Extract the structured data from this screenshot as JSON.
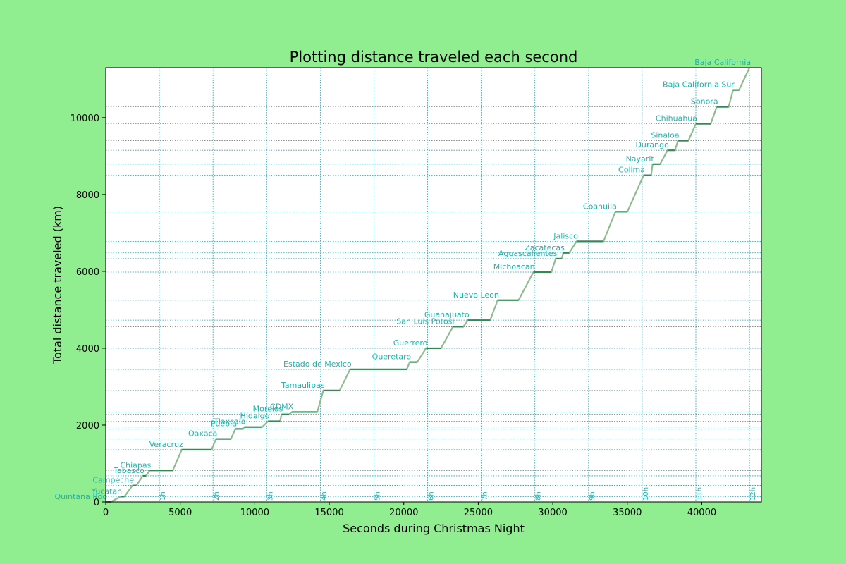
{
  "chart_data": {
    "type": "line",
    "title": "Plotting distance traveled each second",
    "xlabel": "Seconds during Christmas Night",
    "ylabel": "Total distance traveled (km)",
    "xlim": [
      0,
      44000
    ],
    "ylim": [
      0,
      11300
    ],
    "x_ticks": [
      0,
      5000,
      10000,
      15000,
      20000,
      25000,
      30000,
      35000,
      40000
    ],
    "y_ticks": [
      0,
      2000,
      4000,
      6000,
      8000,
      10000
    ],
    "hour_marks": [
      {
        "x": 3600,
        "label": "1h"
      },
      {
        "x": 7200,
        "label": "2h"
      },
      {
        "x": 10800,
        "label": "3h"
      },
      {
        "x": 14400,
        "label": "4h"
      },
      {
        "x": 18000,
        "label": "5h"
      },
      {
        "x": 21600,
        "label": "6h"
      },
      {
        "x": 25200,
        "label": "7h"
      },
      {
        "x": 28800,
        "label": "8h"
      },
      {
        "x": 32400,
        "label": "9h"
      },
      {
        "x": 36000,
        "label": "10h"
      },
      {
        "x": 39600,
        "label": "11h"
      },
      {
        "x": 43200,
        "label": "12h"
      }
    ],
    "grid": true,
    "colors": {
      "background": "#90ee90",
      "line": "#8fbc8f",
      "stop": "#2e8b57",
      "label": "#20b2aa",
      "grid": "#17a2b8"
    },
    "stops": [
      {
        "name": "Quintana Roo",
        "start": 0,
        "end": 330,
        "km": 0
      },
      {
        "name": "Yucatan",
        "start": 1000,
        "end": 1250,
        "km": 140
      },
      {
        "name": "Campeche",
        "start": 1800,
        "end": 2050,
        "km": 430
      },
      {
        "name": "Tabasco",
        "start": 2500,
        "end": 2700,
        "km": 680
      },
      {
        "name": "Chiapas",
        "start": 2950,
        "end": 4500,
        "km": 820
      },
      {
        "name": "Veracruz",
        "start": 5100,
        "end": 7100,
        "km": 1360
      },
      {
        "name": "Oaxaca",
        "start": 7400,
        "end": 8400,
        "km": 1640
      },
      {
        "name": "Puebla",
        "start": 8700,
        "end": 9200,
        "km": 1900
      },
      {
        "name": "Tlaxcala",
        "start": 9300,
        "end": 10500,
        "km": 1950
      },
      {
        "name": "Hidalgo",
        "start": 10900,
        "end": 11700,
        "km": 2100
      },
      {
        "name": "Morelos",
        "start": 11800,
        "end": 12300,
        "km": 2280
      },
      {
        "name": "CDMX",
        "start": 12500,
        "end": 14200,
        "km": 2340
      },
      {
        "name": "Tamaulipas",
        "start": 14600,
        "end": 15700,
        "km": 2900
      },
      {
        "name": "Estado de Mexico",
        "start": 16400,
        "end": 20200,
        "km": 3450
      },
      {
        "name": "Queretaro",
        "start": 20400,
        "end": 20900,
        "km": 3640
      },
      {
        "name": "Guerrero",
        "start": 21500,
        "end": 22500,
        "km": 4000
      },
      {
        "name": "San Luis Potosi",
        "start": 23300,
        "end": 24000,
        "km": 4560
      },
      {
        "name": "Guanajuato",
        "start": 24300,
        "end": 25800,
        "km": 4730
      },
      {
        "name": "Nuevo Leon",
        "start": 26300,
        "end": 27700,
        "km": 5250
      },
      {
        "name": "Michoacan",
        "start": 28700,
        "end": 29900,
        "km": 5980
      },
      {
        "name": "Aguascalientes",
        "start": 30200,
        "end": 30600,
        "km": 6330
      },
      {
        "name": "Zacatecas",
        "start": 30700,
        "end": 31100,
        "km": 6480
      },
      {
        "name": "Jalisco",
        "start": 31600,
        "end": 33400,
        "km": 6780
      },
      {
        "name": "Coahuila",
        "start": 34200,
        "end": 35000,
        "km": 7550
      },
      {
        "name": "Colima",
        "start": 36100,
        "end": 36600,
        "km": 8500
      },
      {
        "name": "Nayarit",
        "start": 36700,
        "end": 37200,
        "km": 8790
      },
      {
        "name": "Durango",
        "start": 37700,
        "end": 38200,
        "km": 9150
      },
      {
        "name": "Sinaloa",
        "start": 38400,
        "end": 39100,
        "km": 9400
      },
      {
        "name": "Chihuahua",
        "start": 39600,
        "end": 40600,
        "km": 9840
      },
      {
        "name": "Sonora",
        "start": 41000,
        "end": 41800,
        "km": 10280
      },
      {
        "name": "Baja California Sur",
        "start": 42100,
        "end": 42500,
        "km": 10720
      },
      {
        "name": "Baja California",
        "start": 43200,
        "end": 43200,
        "km": 11300
      }
    ]
  }
}
